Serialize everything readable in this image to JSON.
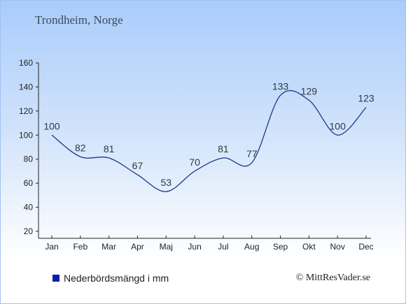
{
  "chart_data": {
    "type": "line",
    "title": "Trondheim, Norge",
    "categories": [
      "Jan",
      "Feb",
      "Mar",
      "Apr",
      "Maj",
      "Jun",
      "Jul",
      "Aug",
      "Sep",
      "Okt",
      "Nov",
      "Dec"
    ],
    "series": [
      {
        "name": "Nederbördsmängd i mm",
        "values": [
          100,
          82,
          81,
          67,
          53,
          70,
          81,
          77,
          133,
          129,
          100,
          123
        ]
      }
    ],
    "y_ticks": [
      20,
      40,
      60,
      80,
      100,
      120,
      140,
      160
    ],
    "ylim": [
      20,
      160
    ],
    "grid": false,
    "legend_position": "bottom-left",
    "line_color": "#1a3a8c",
    "legend_color": "#0a1fa8"
  },
  "legend": {
    "label": "Nederbördsmängd i mm"
  },
  "credit": "© MittResVader.se"
}
